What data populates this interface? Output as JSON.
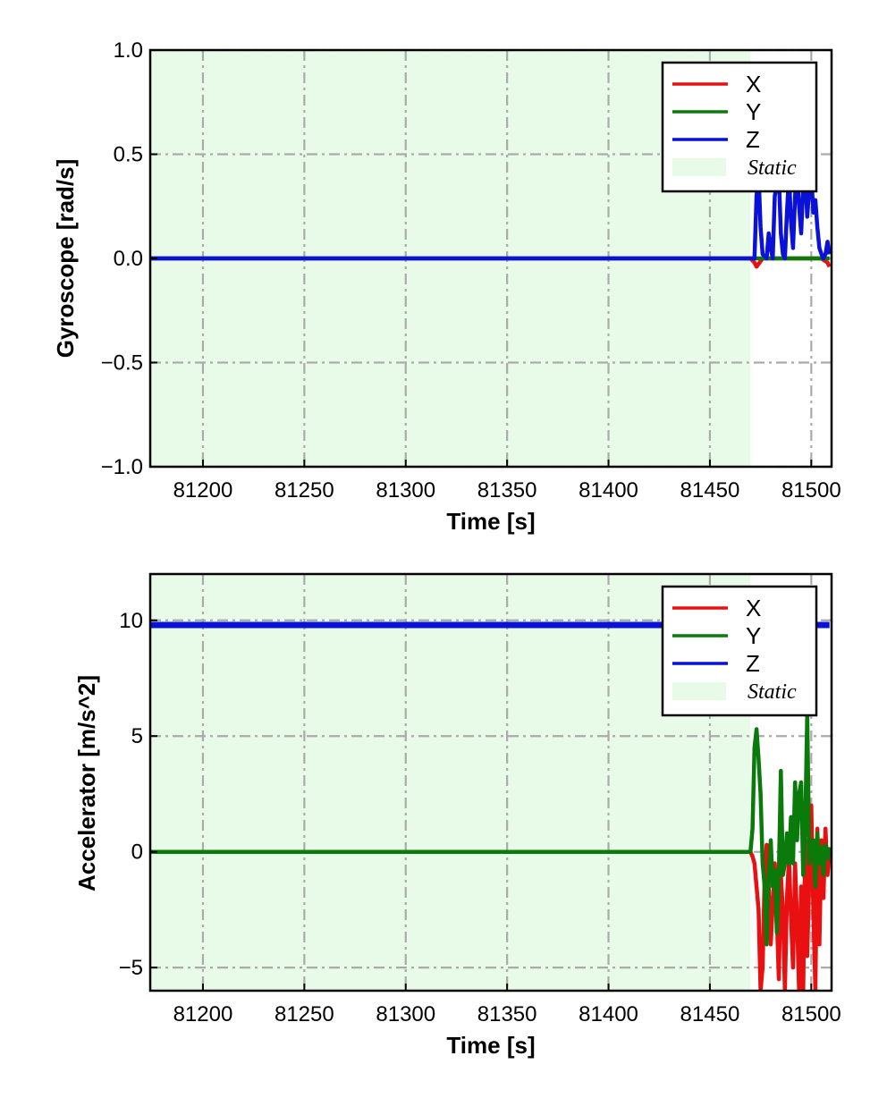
{
  "chart_data": [
    {
      "type": "line",
      "xlabel": "Time [s]",
      "ylabel": "Gyroscope [rad/s]",
      "xlim": [
        81174,
        81510
      ],
      "ylim": [
        -1.0,
        1.0
      ],
      "xticks": [
        81200,
        81250,
        81300,
        81350,
        81400,
        81450,
        81500
      ],
      "yticks": [
        1.0,
        0.5,
        0.0,
        -0.5,
        -1.0
      ],
      "ytick_labels": [
        "1.0",
        "0.5",
        "0.0",
        "−0.5",
        "−1.0"
      ],
      "grid": true,
      "grid_style": "dash-dot",
      "legend_position": "top-right",
      "static_region": {
        "label": "Static",
        "x_start": 81174,
        "x_end": 81470,
        "color": "#e8fbe8"
      },
      "series": [
        {
          "name": "X",
          "color": "#e81010",
          "x": [
            81174,
            81470,
            81472,
            81473,
            81476,
            81480,
            81485,
            81490,
            81495,
            81500,
            81505,
            81508,
            81509
          ],
          "y": [
            0.0,
            0.0,
            -0.02,
            -0.04,
            0.0,
            0.0,
            0.0,
            0.0,
            0.0,
            0.0,
            0.0,
            -0.02,
            -0.04
          ]
        },
        {
          "name": "Y",
          "color": "#0a7a0a",
          "x": [
            81174,
            81470,
            81490,
            81509
          ],
          "y": [
            0.0,
            0.0,
            0.0,
            0.0
          ]
        },
        {
          "name": "Z",
          "color": "#0a12d8",
          "x": [
            81174,
            81470,
            81472,
            81473,
            81474,
            81475,
            81476,
            81478,
            81479,
            81480,
            81481,
            81482,
            81484,
            81485,
            81486,
            81487,
            81488,
            81489,
            81490,
            81491,
            81492,
            81493,
            81494,
            81495,
            81496,
            81497,
            81498,
            81499,
            81500,
            81501,
            81502,
            81503,
            81504,
            81505,
            81506,
            81507,
            81508,
            81509
          ],
          "y": [
            0.0,
            0.0,
            0.0,
            0.3,
            0.4,
            0.15,
            0.02,
            0.0,
            0.12,
            0.05,
            0.0,
            0.3,
            0.4,
            0.12,
            0.02,
            0.0,
            0.22,
            0.4,
            0.18,
            0.05,
            0.3,
            0.4,
            0.25,
            0.12,
            0.35,
            0.4,
            0.2,
            0.34,
            0.4,
            0.22,
            0.28,
            0.15,
            0.05,
            0.02,
            0.0,
            0.02,
            0.08,
            0.02
          ]
        }
      ]
    },
    {
      "type": "line",
      "xlabel": "Time [s]",
      "ylabel": "Accelerator [m/s^2]",
      "xlim": [
        81174,
        81510
      ],
      "ylim": [
        -6.0,
        12.0
      ],
      "xticks": [
        81200,
        81250,
        81300,
        81350,
        81400,
        81450,
        81500
      ],
      "yticks": [
        10,
        5,
        0,
        -5
      ],
      "ytick_labels": [
        "10",
        "5",
        "0",
        "−5"
      ],
      "grid": true,
      "grid_style": "dash-dot",
      "legend_position": "top-right",
      "static_region": {
        "label": "Static",
        "x_start": 81174,
        "x_end": 81470,
        "color": "#e8fbe8"
      },
      "series": [
        {
          "name": "X",
          "color": "#e81010",
          "x": [
            81174,
            81470,
            81471,
            81472,
            81473,
            81474,
            81475,
            81476,
            81477,
            81478,
            81479,
            81480,
            81482,
            81483,
            81484,
            81485,
            81486,
            81487,
            81488,
            81489,
            81490,
            81491,
            81492,
            81493,
            81494,
            81495,
            81496,
            81497,
            81498,
            81499,
            81500,
            81501,
            81502,
            81503,
            81504,
            81505,
            81506,
            81507,
            81508,
            81509
          ],
          "y": [
            0.0,
            0.0,
            -0.2,
            -0.5,
            -1.5,
            -2.5,
            -6.0,
            -5.0,
            -1.0,
            0.3,
            -1.5,
            -4.0,
            -0.5,
            -2.8,
            -5.5,
            -1.0,
            -2.5,
            -6.0,
            -2.0,
            -0.3,
            -2.8,
            -5.0,
            -0.5,
            -3.0,
            -6.0,
            -1.5,
            -6.0,
            0.5,
            -4.5,
            -1.0,
            2.0,
            -2.5,
            -6.0,
            1.0,
            -4.0,
            0.5,
            -2.0,
            1.0,
            -1.0,
            0.0
          ]
        },
        {
          "name": "Y",
          "color": "#0a7a0a",
          "x": [
            81174,
            81470,
            81471,
            81472,
            81473,
            81474,
            81475,
            81476,
            81477,
            81478,
            81479,
            81480,
            81481,
            81482,
            81483,
            81484,
            81485,
            81486,
            81487,
            81488,
            81489,
            81490,
            81491,
            81492,
            81493,
            81494,
            81495,
            81496,
            81497,
            81498,
            81499,
            81500,
            81501,
            81502,
            81503,
            81504,
            81505,
            81506,
            81507,
            81508,
            81509
          ],
          "y": [
            0.0,
            0.0,
            1.0,
            4.5,
            5.3,
            4.0,
            2.5,
            -0.5,
            -1.5,
            -4.0,
            -1.0,
            0.5,
            -1.5,
            -0.8,
            -3.5,
            -1.0,
            3.5,
            -1.0,
            -0.5,
            0.8,
            -0.5,
            1.5,
            -0.5,
            3.0,
            0.5,
            2.5,
            3.0,
            -1.0,
            1.0,
            6.0,
            -0.5,
            0.2,
            0.5,
            -1.5,
            0.8,
            -0.5,
            0.2,
            -1.0,
            0.3,
            -0.3,
            0.2
          ]
        },
        {
          "name": "Z",
          "color": "#0a12d8",
          "x": [
            81174,
            81509
          ],
          "y": [
            9.8,
            9.8
          ]
        }
      ]
    }
  ]
}
